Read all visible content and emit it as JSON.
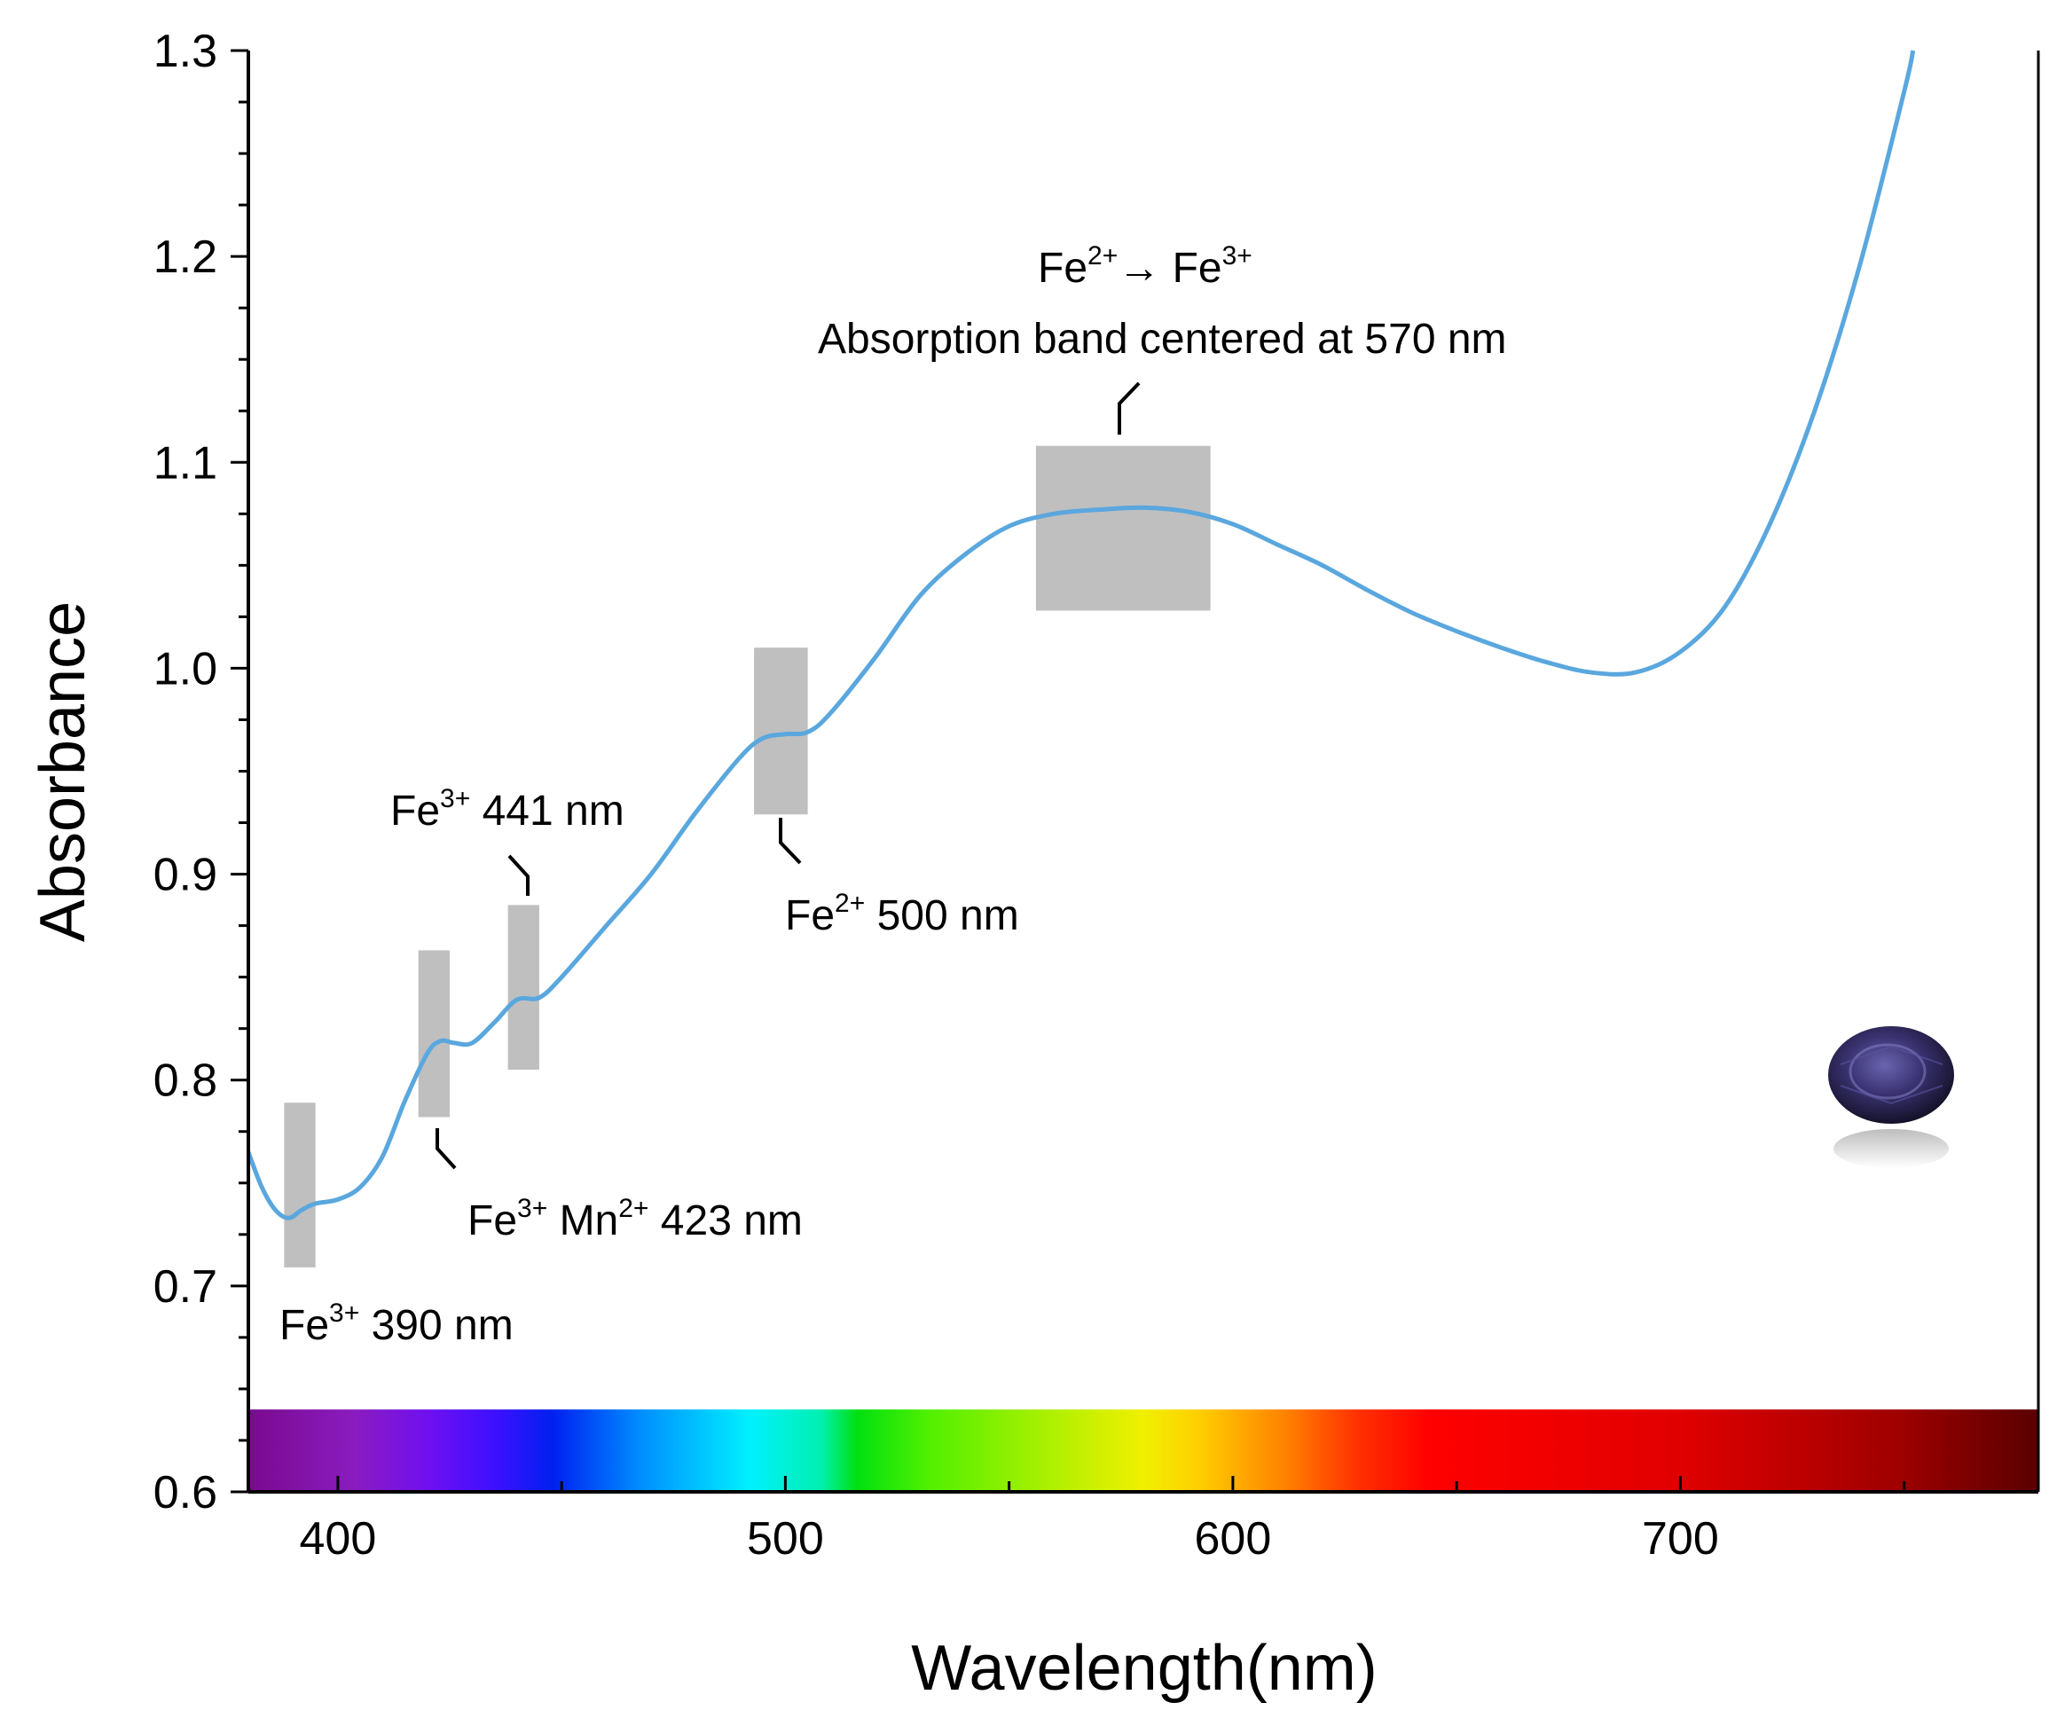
{
  "chart_data": {
    "type": "line",
    "title": "",
    "xlabel": "Wavelength(nm)",
    "ylabel": "Absorbance",
    "xlim": [
      380,
      780
    ],
    "ylim": [
      0.6,
      1.3
    ],
    "x_ticks": [
      400,
      500,
      600,
      700
    ],
    "x_tick_labels": [
      "400",
      "500",
      "600",
      "700"
    ],
    "x_minor_ticks": [
      450,
      550,
      650,
      750
    ],
    "y_ticks": [
      0.6,
      0.7,
      0.8,
      0.9,
      1.0,
      1.1,
      1.2,
      1.3
    ],
    "y_tick_labels": [
      "0.6",
      "0.7",
      "0.8",
      "0.9",
      "1.0",
      "1.1",
      "1.2",
      "1.3"
    ],
    "grid": false,
    "line_color": "#5aa7de",
    "band_color": "#bfbfbf",
    "series": [
      {
        "name": "Absorbance",
        "x": [
          380,
          383,
          386,
          389,
          392,
          395,
          400,
          405,
          410,
          415,
          420,
          423,
          426,
          430,
          435,
          440,
          445,
          450,
          460,
          470,
          480,
          490,
          495,
          500,
          505,
          510,
          520,
          530,
          540,
          550,
          560,
          570,
          580,
          590,
          600,
          610,
          620,
          630,
          640,
          650,
          660,
          670,
          680,
          690,
          700,
          710,
          720,
          730,
          740,
          750,
          752
        ],
        "y": [
          0.765,
          0.748,
          0.737,
          0.733,
          0.737,
          0.74,
          0.742,
          0.748,
          0.763,
          0.79,
          0.813,
          0.819,
          0.818,
          0.818,
          0.828,
          0.839,
          0.84,
          0.85,
          0.875,
          0.9,
          0.93,
          0.957,
          0.966,
          0.968,
          0.969,
          0.978,
          1.005,
          1.035,
          1.055,
          1.069,
          1.075,
          1.077,
          1.078,
          1.076,
          1.07,
          1.06,
          1.05,
          1.038,
          1.027,
          1.018,
          1.01,
          1.003,
          0.998,
          0.998,
          1.008,
          1.03,
          1.07,
          1.125,
          1.195,
          1.28,
          1.3
        ]
      }
    ],
    "bands": [
      {
        "x0": 388,
        "x1": 395,
        "y0": 0.709,
        "y1": 0.789
      },
      {
        "x0": 418,
        "x1": 425,
        "y0": 0.782,
        "y1": 0.863
      },
      {
        "x0": 438,
        "x1": 445,
        "y0": 0.805,
        "y1": 0.885
      },
      {
        "x0": 493,
        "x1": 505,
        "y0": 0.929,
        "y1": 1.01
      },
      {
        "x0": 556,
        "x1": 595,
        "y0": 1.028,
        "y1": 1.108
      }
    ],
    "spectrum_bar": {
      "y0": 0.6,
      "y1": 0.64
    },
    "annotations": [
      {
        "id": "fe3-390",
        "base": "Fe",
        "sup": "3+",
        "rest": " 390 nm"
      },
      {
        "id": "fe3-mn2-423",
        "base": "Fe",
        "sup": "3+",
        "mid": " Mn",
        "sup2": "2+",
        "rest": " 423 nm"
      },
      {
        "id": "fe3-441",
        "base": "Fe",
        "sup": "3+",
        "rest": " 441 nm"
      },
      {
        "id": "fe2-500",
        "base": "Fe",
        "sup": "2+",
        "rest": " 500 nm"
      },
      {
        "id": "ivct",
        "base": "Fe",
        "sup": "2+",
        "arrow": "→ Fe",
        "sup2": "3+",
        "line2": "Absorption band centered at 570 nm"
      }
    ]
  }
}
